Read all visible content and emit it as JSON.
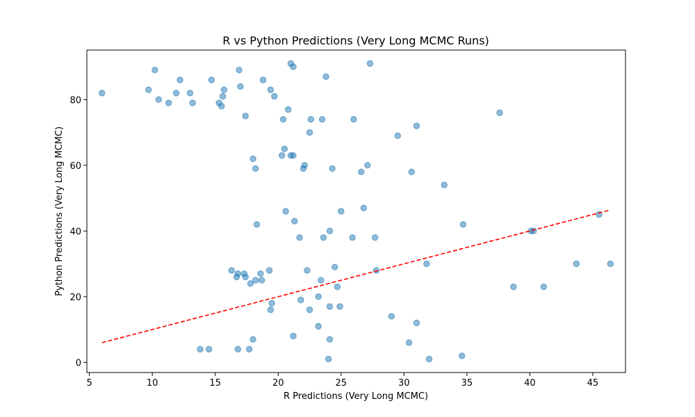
{
  "chart_data": {
    "type": "scatter",
    "title": "R vs Python Predictions (Very Long MCMC Runs)",
    "xlabel": "R Predictions (Very Long MCMC)",
    "ylabel": "Python Predictions (Very Long MCMC)",
    "xlim": [
      4.8,
      47.6
    ],
    "ylim": [
      -3.1,
      95.1
    ],
    "xticks": [
      5,
      10,
      15,
      20,
      25,
      30,
      35,
      40,
      45
    ],
    "yticks": [
      0,
      20,
      40,
      60,
      80
    ],
    "grid": false,
    "point_color": "#1f77b4",
    "point_alpha": 0.5,
    "line_color": "#ff0000",
    "points": [
      [
        6.0,
        82
      ],
      [
        9.7,
        83
      ],
      [
        10.2,
        89
      ],
      [
        10.5,
        80
      ],
      [
        11.3,
        79
      ],
      [
        11.9,
        82
      ],
      [
        12.2,
        86
      ],
      [
        13.0,
        82
      ],
      [
        13.2,
        79
      ],
      [
        14.7,
        86
      ],
      [
        15.3,
        79
      ],
      [
        15.5,
        78
      ],
      [
        15.6,
        81
      ],
      [
        15.7,
        83
      ],
      [
        16.9,
        89
      ],
      [
        17.0,
        84
      ],
      [
        17.4,
        75
      ],
      [
        18.8,
        86
      ],
      [
        19.4,
        83
      ],
      [
        19.7,
        81
      ],
      [
        20.4,
        74
      ],
      [
        20.8,
        77
      ],
      [
        21.0,
        91
      ],
      [
        21.2,
        90
      ],
      [
        22.5,
        70
      ],
      [
        22.6,
        74
      ],
      [
        23.5,
        74
      ],
      [
        23.8,
        87
      ],
      [
        26.0,
        74
      ],
      [
        27.3,
        91
      ],
      [
        29.5,
        69
      ],
      [
        31.0,
        72
      ],
      [
        37.6,
        76
      ],
      [
        18.0,
        62
      ],
      [
        18.2,
        59
      ],
      [
        20.3,
        63
      ],
      [
        20.5,
        65
      ],
      [
        21.0,
        63
      ],
      [
        21.2,
        63
      ],
      [
        22.0,
        59
      ],
      [
        22.1,
        60
      ],
      [
        24.3,
        59
      ],
      [
        26.6,
        58
      ],
      [
        27.1,
        60
      ],
      [
        30.6,
        58
      ],
      [
        33.2,
        54
      ],
      [
        18.3,
        42
      ],
      [
        20.6,
        46
      ],
      [
        21.3,
        43
      ],
      [
        21.7,
        38
      ],
      [
        23.6,
        38
      ],
      [
        24.1,
        40
      ],
      [
        25.0,
        46
      ],
      [
        25.9,
        38
      ],
      [
        26.8,
        47
      ],
      [
        27.7,
        38
      ],
      [
        34.7,
        42
      ],
      [
        40.1,
        40
      ],
      [
        40.3,
        40
      ],
      [
        45.5,
        45
      ],
      [
        16.3,
        28
      ],
      [
        16.7,
        26
      ],
      [
        16.8,
        27
      ],
      [
        17.3,
        27
      ],
      [
        17.4,
        26
      ],
      [
        17.8,
        24
      ],
      [
        18.2,
        25
      ],
      [
        18.6,
        27
      ],
      [
        18.7,
        25
      ],
      [
        19.3,
        28
      ],
      [
        19.4,
        16
      ],
      [
        19.5,
        18
      ],
      [
        21.8,
        19
      ],
      [
        22.3,
        28
      ],
      [
        22.5,
        16
      ],
      [
        23.2,
        20
      ],
      [
        23.4,
        25
      ],
      [
        24.1,
        17
      ],
      [
        24.5,
        29
      ],
      [
        24.7,
        23
      ],
      [
        24.9,
        17
      ],
      [
        27.8,
        28
      ],
      [
        31.8,
        30
      ],
      [
        38.7,
        23
      ],
      [
        41.1,
        23
      ],
      [
        43.7,
        30
      ],
      [
        46.4,
        30
      ],
      [
        13.8,
        4
      ],
      [
        14.5,
        4
      ],
      [
        16.8,
        4
      ],
      [
        17.7,
        4
      ],
      [
        18.0,
        7
      ],
      [
        21.2,
        8
      ],
      [
        23.2,
        11
      ],
      [
        24.0,
        1
      ],
      [
        24.1,
        7
      ],
      [
        29.0,
        14
      ],
      [
        30.4,
        6
      ],
      [
        31.0,
        12
      ],
      [
        32.0,
        1
      ],
      [
        34.6,
        2
      ]
    ],
    "reference_line": {
      "x": [
        6.0,
        46.4
      ],
      "y": [
        6.0,
        46.4
      ]
    }
  }
}
